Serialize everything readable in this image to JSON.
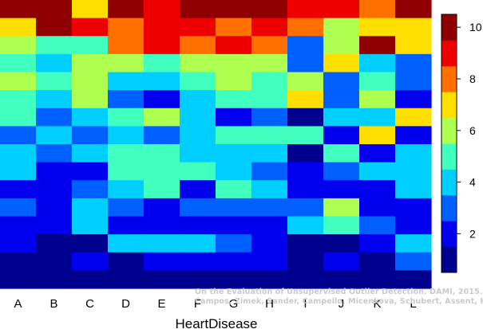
{
  "chart_data": {
    "type": "heatmap",
    "xlabel": "HeartDisease",
    "categories": [
      "A",
      "B",
      "C",
      "D",
      "E",
      "F",
      "G",
      "H",
      "I",
      "J",
      "K",
      "L"
    ],
    "colorbar": {
      "range": [
        0.5,
        10.5
      ],
      "ticks": [
        2,
        4,
        6,
        8,
        10
      ],
      "levels": [
        {
          "value": 1,
          "color": "#00008F"
        },
        {
          "value": 2,
          "color": "#0000EF"
        },
        {
          "value": 3,
          "color": "#005FFF"
        },
        {
          "value": 4,
          "color": "#00CFFF"
        },
        {
          "value": 5,
          "color": "#40FFBF"
        },
        {
          "value": 6,
          "color": "#AFFF50"
        },
        {
          "value": 7,
          "color": "#FFDF00"
        },
        {
          "value": 8,
          "color": "#FF7000"
        },
        {
          "value": 9,
          "color": "#EF0000"
        },
        {
          "value": 10,
          "color": "#8F0000"
        }
      ]
    },
    "values": [
      [
        10,
        10,
        7,
        10,
        9,
        10,
        10,
        10,
        9,
        9,
        8,
        10
      ],
      [
        7,
        10,
        9,
        8,
        9,
        9,
        8,
        9,
        8,
        6,
        7,
        7
      ],
      [
        6,
        5,
        5,
        8,
        9,
        8,
        9,
        8,
        3,
        6,
        10,
        7
      ],
      [
        5,
        4,
        6,
        6,
        5,
        6,
        6,
        6,
        3,
        7,
        4,
        3
      ],
      [
        6,
        5,
        6,
        4,
        4,
        5,
        6,
        5,
        6,
        3,
        5,
        3
      ],
      [
        5,
        4,
        6,
        3,
        2,
        4,
        5,
        5,
        7,
        3,
        6,
        2
      ],
      [
        5,
        3,
        4,
        5,
        6,
        4,
        2,
        3,
        1,
        4,
        4,
        7
      ],
      [
        3,
        4,
        3,
        4,
        3,
        4,
        5,
        5,
        5,
        2,
        7,
        2
      ],
      [
        4,
        3,
        4,
        5,
        5,
        4,
        4,
        4,
        1,
        5,
        2,
        4
      ],
      [
        4,
        2,
        2,
        5,
        5,
        5,
        4,
        3,
        2,
        3,
        4,
        4
      ],
      [
        2,
        2,
        3,
        4,
        5,
        2,
        5,
        4,
        2,
        2,
        2,
        4
      ],
      [
        3,
        2,
        4,
        3,
        2,
        3,
        3,
        3,
        3,
        6,
        2,
        2
      ],
      [
        2,
        2,
        4,
        2,
        2,
        2,
        2,
        2,
        4,
        5,
        3,
        2
      ],
      [
        2,
        1,
        1,
        4,
        4,
        4,
        3,
        2,
        1,
        1,
        2,
        4
      ],
      [
        1,
        1,
        2,
        1,
        2,
        2,
        2,
        2,
        1,
        2,
        1,
        3
      ],
      [
        1,
        1,
        1,
        1,
        1,
        1,
        1,
        1,
        1,
        1,
        1,
        1
      ]
    ]
  },
  "watermark": {
    "line1": "On the Evaluation of Unsupervised Outlier Detection. DAMI, 2015.",
    "line2": "Campos, Zimek, Sander, Campello, Micenkova, Schubert, Assent, Houle"
  }
}
